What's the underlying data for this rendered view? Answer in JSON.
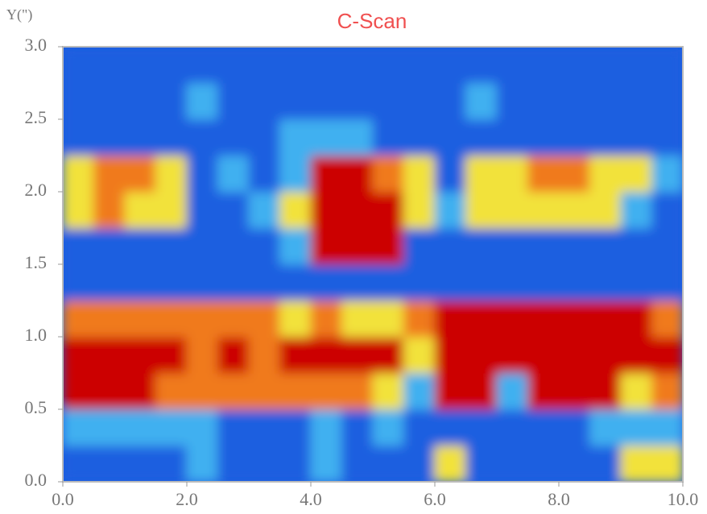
{
  "chart_data": {
    "type": "heatmap",
    "title": "C-Scan",
    "ylabel": "Y(\")",
    "x": [
      0.25,
      0.75,
      1.25,
      1.75,
      2.25,
      2.75,
      3.25,
      3.75,
      4.25,
      4.75,
      5.25,
      5.75,
      6.25,
      6.75,
      7.25,
      7.75,
      8.25,
      8.75,
      9.25,
      9.75
    ],
    "y": [
      0.125,
      0.375,
      0.625,
      0.875,
      1.125,
      1.375,
      1.625,
      1.875,
      2.125,
      2.375,
      2.625,
      2.875
    ],
    "z": [
      [
        0,
        0,
        0,
        0,
        1,
        0,
        0,
        0,
        1,
        0,
        0,
        0,
        2,
        0,
        0,
        0,
        0,
        0,
        2,
        2
      ],
      [
        1,
        1,
        1,
        1,
        1,
        0,
        0,
        0,
        1,
        0,
        1,
        0,
        0,
        0,
        0,
        0,
        0,
        1,
        1,
        1
      ],
      [
        4,
        4,
        4,
        3,
        3,
        3,
        3,
        3,
        3,
        3,
        2,
        1,
        4,
        4,
        1,
        4,
        4,
        4,
        2,
        3
      ],
      [
        4,
        4,
        4,
        4,
        3,
        4,
        3,
        4,
        4,
        4,
        4,
        2,
        4,
        4,
        4,
        4,
        4,
        4,
        4,
        4
      ],
      [
        3,
        3,
        3,
        3,
        3,
        3,
        3,
        2,
        3,
        2,
        2,
        3,
        4,
        4,
        4,
        4,
        4,
        4,
        4,
        3
      ],
      [
        0,
        0,
        0,
        0,
        0,
        0,
        0,
        0,
        0,
        0,
        0,
        0,
        0,
        0,
        0,
        0,
        0,
        0,
        0,
        0
      ],
      [
        0,
        0,
        0,
        0,
        0,
        0,
        0,
        1,
        4,
        4,
        4,
        0,
        0,
        0,
        0,
        0,
        0,
        0,
        0,
        0
      ],
      [
        2,
        3,
        2,
        2,
        0,
        0,
        1,
        2,
        4,
        4,
        4,
        2,
        1,
        2,
        2,
        2,
        2,
        2,
        1,
        0
      ],
      [
        2,
        3,
        3,
        2,
        0,
        1,
        0,
        1,
        4,
        4,
        3,
        2,
        0,
        2,
        2,
        3,
        3,
        2,
        2,
        1
      ],
      [
        0,
        0,
        0,
        0,
        0,
        0,
        0,
        1,
        1,
        1,
        0,
        0,
        0,
        0,
        0,
        0,
        0,
        0,
        0,
        0
      ],
      [
        0,
        0,
        0,
        0,
        1,
        0,
        0,
        0,
        0,
        0,
        0,
        0,
        0,
        1,
        0,
        0,
        0,
        0,
        0,
        0
      ],
      [
        0,
        0,
        0,
        0,
        0,
        0,
        0,
        0,
        0,
        0,
        0,
        0,
        0,
        0,
        0,
        0,
        0,
        0,
        0,
        0
      ]
    ],
    "colorscale": [
      "#1f5fe0",
      "#40b0f0",
      "#f2e23a",
      "#f07a1e",
      "#cc0000"
    ],
    "xlim": [
      0,
      10
    ],
    "xticks": [
      {
        "value": 0,
        "label": "0.0"
      },
      {
        "value": 2,
        "label": "2.0"
      },
      {
        "value": 4,
        "label": "4.0"
      },
      {
        "value": 6,
        "label": "6.0"
      },
      {
        "value": 8,
        "label": "8.0"
      },
      {
        "value": 10,
        "label": "10.0"
      }
    ],
    "ylim": [
      0,
      3
    ],
    "yticks": [
      {
        "value": 0,
        "label": "0.0"
      },
      {
        "value": 0.5,
        "label": "0.5"
      },
      {
        "value": 1,
        "label": "1.0"
      },
      {
        "value": 1.5,
        "label": "1.5"
      },
      {
        "value": 2,
        "label": "2.0"
      },
      {
        "value": 2.5,
        "label": "2.5"
      },
      {
        "value": 3,
        "label": "3.0"
      }
    ]
  }
}
